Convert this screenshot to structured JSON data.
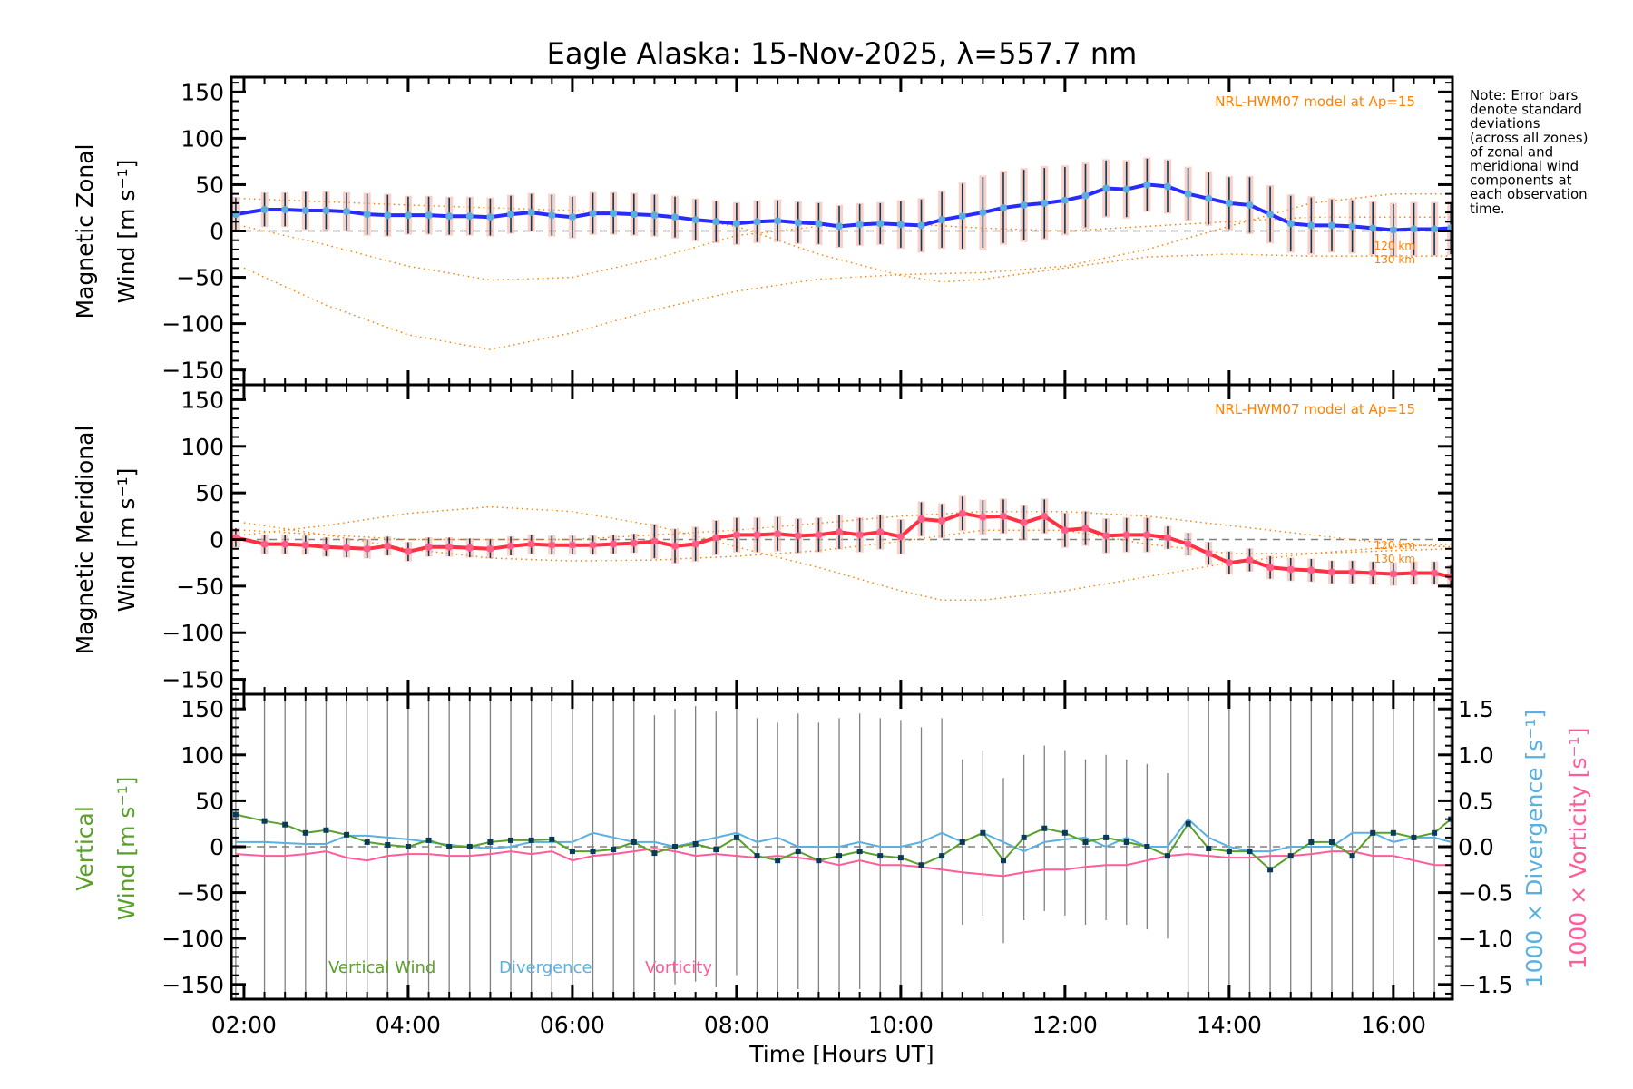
{
  "title": "Eagle Alaska: 15-Nov-2025, λ=557.7 nm",
  "note_lines": [
    "Note: Error bars",
    "denote standard",
    "deviations",
    "(across all zones)",
    "of zonal and",
    "meridional wind",
    "components at",
    "each observation",
    "time."
  ],
  "colors": {
    "zonal": "#2a2aff",
    "zonal_points": "#5aaedc",
    "meridional": "#ff3040",
    "meridional_points": "#ff5c8a",
    "error_bar": "#0a3a5a",
    "shade": "#f8b0a0",
    "model": "#ff8000",
    "vertical": "#5aa02a",
    "divergence": "#5ab0e0",
    "vorticity": "#ff5c9a",
    "vertical_error": "#808080",
    "zero": "#808080"
  },
  "chart_data": [
    {
      "type": "line",
      "panel": "zonal",
      "ylabel_line1": "Magnetic Zonal",
      "ylabel_line2": "Wind [m s⁻¹]",
      "ylim": [
        -166,
        166
      ],
      "xlim": [
        1.846,
        16.72
      ],
      "yticks": [
        "150",
        "100",
        "50",
        "0",
        "−50",
        "−100",
        "−150"
      ],
      "ytick_values": [
        150,
        100,
        50,
        0,
        -50,
        -100,
        -150
      ],
      "model_label": "NRL-HWM07 model at Ap=15",
      "model_alt_labels": [
        "120 km",
        "130 km"
      ],
      "t": [
        1.9,
        2.25,
        2.5,
        2.75,
        3.0,
        3.25,
        3.5,
        3.75,
        4.0,
        4.25,
        4.5,
        4.75,
        5.0,
        5.25,
        5.5,
        5.75,
        6.0,
        6.25,
        6.5,
        6.75,
        7.0,
        7.25,
        7.5,
        7.75,
        8.0,
        8.25,
        8.5,
        8.75,
        9.0,
        9.25,
        9.5,
        9.75,
        10.0,
        10.25,
        10.5,
        10.75,
        11.0,
        11.25,
        11.5,
        11.75,
        12.0,
        12.25,
        12.5,
        12.75,
        13.0,
        13.25,
        13.5,
        13.75,
        14.0,
        14.25,
        14.5,
        14.75,
        15.0,
        15.25,
        15.5,
        15.75,
        16.0,
        16.25,
        16.5,
        16.7
      ],
      "values": [
        18,
        23,
        23,
        22,
        22,
        21,
        18,
        17,
        17,
        17,
        16,
        16,
        15,
        18,
        20,
        17,
        15,
        19,
        19,
        18,
        17,
        15,
        12,
        10,
        8,
        10,
        11,
        9,
        8,
        5,
        7,
        8,
        7,
        6,
        12,
        16,
        20,
        25,
        28,
        30,
        33,
        38,
        46,
        45,
        50,
        48,
        40,
        35,
        30,
        28,
        18,
        8,
        6,
        6,
        5,
        3,
        1,
        2,
        2,
        3
      ],
      "sigma": [
        18,
        18,
        18,
        20,
        20,
        20,
        22,
        22,
        20,
        20,
        20,
        20,
        20,
        20,
        20,
        22,
        22,
        22,
        22,
        22,
        22,
        22,
        22,
        22,
        22,
        22,
        22,
        22,
        22,
        22,
        22,
        22,
        25,
        28,
        30,
        35,
        38,
        38,
        38,
        38,
        36,
        34,
        30,
        30,
        28,
        28,
        28,
        28,
        28,
        30,
        30,
        30,
        30,
        28,
        28,
        28,
        28,
        28,
        28,
        28
      ],
      "models": [
        {
          "t": [
            2,
            4,
            6,
            7,
            8,
            9,
            10,
            10.5,
            11,
            12,
            13,
            14,
            15,
            16.7
          ],
          "v": [
            35,
            28,
            22,
            18,
            5,
            -25,
            -48,
            -55,
            -52,
            -40,
            -28,
            -25,
            -27,
            -27
          ]
        },
        {
          "t": [
            2,
            3,
            4,
            5,
            6,
            7,
            8,
            9,
            10,
            11,
            12,
            13,
            14,
            15,
            16.7
          ],
          "v": [
            5,
            -15,
            -38,
            -53,
            -50,
            -30,
            -5,
            5,
            8,
            3,
            0,
            5,
            10,
            15,
            15
          ]
        },
        {
          "t": [
            2,
            3,
            4,
            5,
            6,
            7,
            8,
            9,
            10,
            11,
            12,
            13,
            14,
            15,
            16,
            16.7
          ],
          "v": [
            -40,
            -80,
            -112,
            -128,
            -110,
            -85,
            -65,
            -52,
            -47,
            -45,
            -38,
            -20,
            5,
            30,
            40,
            40
          ]
        }
      ]
    },
    {
      "type": "line",
      "panel": "meridional",
      "ylabel_line1": "Magnetic Meridional",
      "ylabel_line2": "Wind [m s⁻¹]",
      "ylim": [
        -166,
        166
      ],
      "xlim": [
        1.846,
        16.72
      ],
      "yticks": [
        "150",
        "100",
        "50",
        "0",
        "−50",
        "−100",
        "−150"
      ],
      "ytick_values": [
        150,
        100,
        50,
        0,
        -50,
        -100,
        -150
      ],
      "model_label": "NRL-HWM07 model at Ap=15",
      "model_alt_labels": [
        "120 km",
        "130 km"
      ],
      "values": [
        2,
        -5,
        -5,
        -6,
        -8,
        -9,
        -10,
        -7,
        -13,
        -8,
        -8,
        -9,
        -10,
        -7,
        -5,
        -6,
        -6,
        -6,
        -5,
        -4,
        -2,
        -7,
        -5,
        2,
        5,
        5,
        6,
        4,
        5,
        8,
        5,
        8,
        3,
        22,
        20,
        28,
        24,
        25,
        18,
        25,
        10,
        12,
        4,
        5,
        5,
        2,
        -5,
        -15,
        -25,
        -22,
        -30,
        -32,
        -33,
        -35,
        -35,
        -36,
        -37,
        -36,
        -36,
        -40
      ],
      "sigma": [
        10,
        10,
        10,
        10,
        10,
        10,
        10,
        10,
        10,
        10,
        10,
        10,
        10,
        10,
        10,
        10,
        10,
        10,
        10,
        10,
        18,
        18,
        18,
        18,
        18,
        18,
        18,
        18,
        18,
        18,
        18,
        18,
        18,
        18,
        18,
        18,
        18,
        18,
        18,
        18,
        18,
        18,
        18,
        18,
        18,
        12,
        12,
        12,
        12,
        12,
        12,
        12,
        12,
        12,
        12,
        12,
        12,
        12,
        12,
        12
      ],
      "models": [
        {
          "t": [
            2,
            3,
            4,
            5,
            6,
            7,
            8,
            9,
            10,
            11,
            12,
            13,
            14,
            15,
            16,
            16.7
          ],
          "v": [
            18,
            5,
            -10,
            -20,
            -23,
            -22,
            -18,
            -12,
            -2,
            10,
            10,
            -5,
            -15,
            -15,
            -12,
            -10
          ]
        },
        {
          "t": [
            2,
            3,
            4,
            5,
            6,
            7,
            8,
            9,
            10,
            10.5,
            11,
            12,
            13,
            14,
            15,
            16,
            16.7
          ],
          "v": [
            5,
            15,
            28,
            35,
            30,
            15,
            -8,
            -30,
            -55,
            -65,
            -65,
            -55,
            -40,
            -25,
            -15,
            -8,
            -5
          ]
        },
        {
          "t": [
            2,
            4,
            6,
            8,
            10,
            11,
            12,
            13,
            14,
            15,
            16,
            16.7
          ],
          "v": [
            10,
            0,
            0,
            10,
            25,
            30,
            30,
            25,
            15,
            5,
            -5,
            -8
          ]
        }
      ]
    },
    {
      "type": "line",
      "panel": "vertical",
      "ylabel_line1": "Vertical",
      "ylabel_line2": "Wind [m s⁻¹]",
      "y2label_divergence": "1000 × Divergence [s⁻¹]",
      "y2label_vorticity": "1000 × Vorticity [s⁻¹]",
      "ylim": [
        -166,
        166
      ],
      "y2lim": [
        -1.66,
        1.66
      ],
      "xlim": [
        1.846,
        16.72
      ],
      "xlabel": "Time [Hours UT]",
      "xticks": [
        "02:00",
        "04:00",
        "06:00",
        "08:00",
        "10:00",
        "12:00",
        "14:00",
        "16:00"
      ],
      "xtick_values": [
        2,
        4,
        6,
        8,
        10,
        12,
        14,
        16
      ],
      "yticks": [
        "150",
        "100",
        "50",
        "0",
        "−50",
        "−100",
        "−150"
      ],
      "ytick_values": [
        150,
        100,
        50,
        0,
        -50,
        -100,
        -150
      ],
      "y2ticks": [
        "1.5",
        "1.0",
        "0.5",
        "0.0",
        "−0.5",
        "−1.0",
        "−1.5"
      ],
      "y2tick_values": [
        1.5,
        1.0,
        0.5,
        0.0,
        -0.5,
        -1.0,
        -1.5
      ],
      "legend": [
        "Vertical Wind",
        "Divergence",
        "Vorticity"
      ],
      "vertical_wind": [
        35,
        28,
        24,
        15,
        18,
        13,
        5,
        2,
        0,
        7,
        0,
        0,
        5,
        7,
        7,
        8,
        -5,
        -5,
        -3,
        5,
        -7,
        0,
        3,
        -3,
        10,
        -10,
        -15,
        -5,
        -15,
        -10,
        -5,
        -10,
        -12,
        -20,
        -10,
        5,
        15,
        -15,
        10,
        20,
        15,
        5,
        10,
        5,
        0,
        -10,
        25,
        -2,
        -5,
        -5,
        -25,
        -10,
        5,
        5,
        -10,
        15,
        15,
        10,
        15,
        30
      ],
      "vertical_sigma": [
        300,
        300,
        300,
        300,
        300,
        300,
        300,
        300,
        300,
        300,
        300,
        300,
        300,
        300,
        300,
        300,
        300,
        300,
        300,
        300,
        150,
        150,
        150,
        150,
        150,
        150,
        150,
        150,
        150,
        150,
        150,
        150,
        150,
        150,
        150,
        90,
        90,
        90,
        90,
        90,
        90,
        90,
        90,
        90,
        90,
        90,
        300,
        300,
        300,
        300,
        300,
        300,
        300,
        300,
        300,
        300,
        300,
        300,
        300,
        300
      ],
      "divergence": [
        0.05,
        0.05,
        0.04,
        0.03,
        0.03,
        0.12,
        0.12,
        0.1,
        0.08,
        0.05,
        0.02,
        0.0,
        -0.02,
        0.0,
        0.05,
        0.05,
        0.05,
        0.15,
        0.1,
        0.05,
        0.05,
        0.0,
        0.05,
        0.1,
        0.15,
        0.05,
        0.1,
        0.0,
        0.0,
        0.0,
        0.05,
        0.0,
        0.0,
        0.05,
        0.15,
        0.05,
        0.15,
        0.05,
        -0.05,
        0.05,
        0.08,
        0.1,
        0.0,
        0.1,
        0.0,
        0.0,
        0.3,
        0.1,
        0.0,
        -0.05,
        -0.05,
        0.0,
        0.0,
        0.0,
        0.15,
        0.15,
        0.05,
        0.1,
        0.1,
        0.05
      ],
      "vorticity": [
        -0.08,
        -0.1,
        -0.1,
        -0.08,
        -0.05,
        -0.12,
        -0.15,
        -0.1,
        -0.08,
        -0.08,
        -0.1,
        -0.1,
        -0.08,
        -0.05,
        -0.08,
        -0.05,
        -0.15,
        -0.1,
        -0.08,
        -0.05,
        -0.02,
        -0.05,
        -0.1,
        -0.08,
        -0.1,
        -0.12,
        -0.1,
        -0.12,
        -0.15,
        -0.2,
        -0.15,
        -0.2,
        -0.2,
        -0.22,
        -0.25,
        -0.28,
        -0.3,
        -0.32,
        -0.28,
        -0.25,
        -0.25,
        -0.22,
        -0.2,
        -0.2,
        -0.15,
        -0.1,
        -0.08,
        -0.1,
        -0.12,
        -0.12,
        -0.1,
        -0.1,
        -0.08,
        -0.05,
        -0.05,
        -0.1,
        -0.1,
        -0.15,
        -0.2,
        -0.2
      ]
    }
  ]
}
